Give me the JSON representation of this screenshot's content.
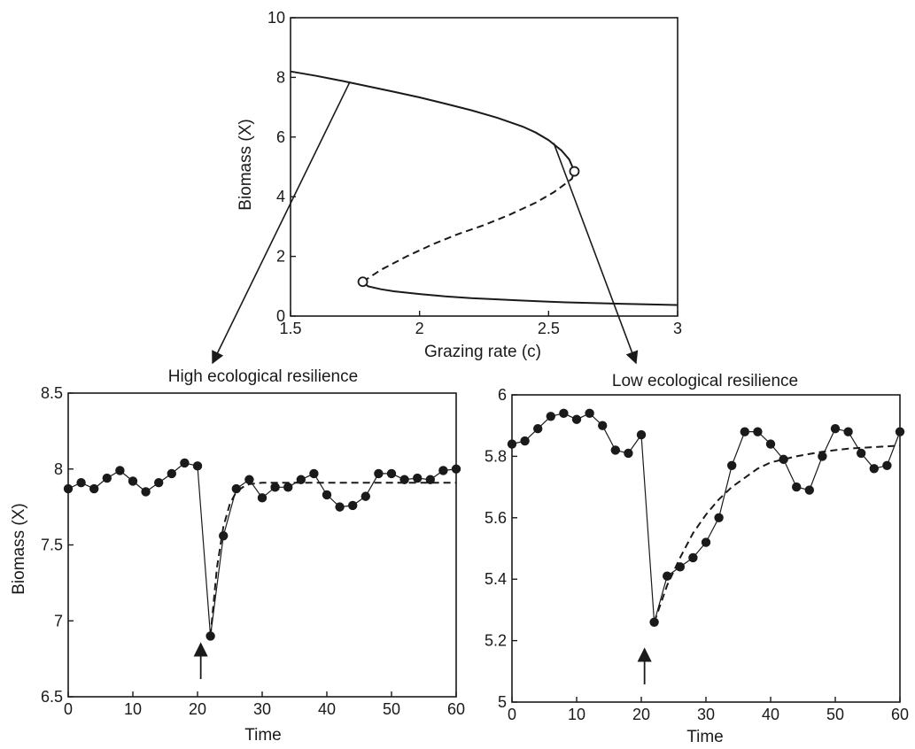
{
  "chart_data": [
    {
      "id": "bifurcation",
      "type": "line",
      "title": "",
      "xlabel": "Grazing rate (c)",
      "ylabel": "Biomass (X)",
      "xlim": [
        1.5,
        3
      ],
      "ylim": [
        0,
        10
      ],
      "xticks": [
        1.5,
        2,
        2.5,
        3
      ],
      "xtick_labels": [
        "1.5",
        "2",
        "2.5",
        "3"
      ],
      "yticks": [
        0,
        2,
        4,
        6,
        8,
        10
      ],
      "ytick_labels": [
        "0",
        "2",
        "4",
        "6",
        "8",
        "10"
      ],
      "grid": false,
      "series": [
        {
          "role": "stable-upper",
          "style": "solid",
          "x": [
            1.5,
            1.6,
            1.7,
            1.8,
            1.9,
            2.0,
            2.1,
            2.2,
            2.3,
            2.4,
            2.45,
            2.5,
            2.55,
            2.58,
            2.6
          ],
          "y": [
            8.2,
            8.05,
            7.88,
            7.7,
            7.52,
            7.33,
            7.12,
            6.9,
            6.65,
            6.35,
            6.15,
            5.9,
            5.55,
            5.25,
            4.85
          ]
        },
        {
          "role": "unstable",
          "style": "dashed",
          "x": [
            1.78,
            1.85,
            1.95,
            2.05,
            2.15,
            2.25,
            2.35,
            2.45,
            2.52,
            2.56,
            2.59,
            2.6
          ],
          "y": [
            1.15,
            1.55,
            2.0,
            2.4,
            2.75,
            3.05,
            3.4,
            3.8,
            4.15,
            4.4,
            4.6,
            4.85
          ]
        },
        {
          "role": "stable-lower",
          "style": "solid",
          "x": [
            1.78,
            1.8,
            1.85,
            1.9,
            2.0,
            2.1,
            2.2,
            2.3,
            2.4,
            2.5,
            2.6,
            2.7,
            2.8,
            2.9,
            3.0
          ],
          "y": [
            1.15,
            1.0,
            0.9,
            0.83,
            0.74,
            0.66,
            0.6,
            0.56,
            0.52,
            0.48,
            0.45,
            0.43,
            0.41,
            0.39,
            0.37
          ]
        }
      ],
      "fold_points": [
        {
          "x": 2.6,
          "y": 4.85
        },
        {
          "x": 1.78,
          "y": 1.15
        }
      ],
      "callouts": [
        {
          "from": {
            "x": 1.73,
            "y": 7.85
          },
          "to_panel": "high-resilience"
        },
        {
          "from": {
            "x": 2.52,
            "y": 5.8
          },
          "to_panel": "low-resilience"
        }
      ]
    },
    {
      "id": "high-resilience",
      "type": "line",
      "title": "High ecological resilience",
      "xlabel": "Time",
      "ylabel": "Biomass (X)",
      "xlim": [
        0,
        60
      ],
      "ylim": [
        6.5,
        8.5
      ],
      "xticks": [
        0,
        10,
        20,
        30,
        40,
        50,
        60
      ],
      "xtick_labels": [
        "0",
        "10",
        "20",
        "30",
        "40",
        "50",
        "60"
      ],
      "yticks": [
        6.5,
        7,
        7.5,
        8,
        8.5
      ],
      "ytick_labels": [
        "6.5",
        "7",
        "7.5",
        "8",
        "8.5"
      ],
      "grid": false,
      "perturbation_time": 20.5,
      "series": [
        {
          "role": "observed",
          "style": "line+markers",
          "x": [
            0,
            2,
            4,
            6,
            8,
            10,
            12,
            14,
            16,
            18,
            20,
            22,
            24,
            26,
            28,
            30,
            32,
            34,
            36,
            38,
            40,
            42,
            44,
            46,
            48,
            50,
            52,
            54,
            56,
            58,
            60
          ],
          "y": [
            7.87,
            7.91,
            7.87,
            7.94,
            7.99,
            7.92,
            7.85,
            7.91,
            7.97,
            8.04,
            8.02,
            6.9,
            7.56,
            7.87,
            7.93,
            7.81,
            7.88,
            7.88,
            7.93,
            7.97,
            7.83,
            7.75,
            7.76,
            7.82,
            7.97,
            7.97,
            7.93,
            7.94,
            7.93,
            7.99,
            8.0
          ]
        },
        {
          "role": "recovery-fit",
          "style": "dashed",
          "x": [
            22,
            23,
            24,
            25,
            26,
            27,
            28,
            30,
            35,
            40,
            50,
            60
          ],
          "y": [
            6.9,
            7.35,
            7.62,
            7.77,
            7.85,
            7.88,
            7.9,
            7.91,
            7.91,
            7.91,
            7.91,
            7.91
          ]
        }
      ]
    },
    {
      "id": "low-resilience",
      "type": "line",
      "title": "Low ecological resilience",
      "xlabel": "Time",
      "ylabel": "",
      "xlim": [
        0,
        60
      ],
      "ylim": [
        5,
        6
      ],
      "xticks": [
        0,
        10,
        20,
        30,
        40,
        50,
        60
      ],
      "xtick_labels": [
        "0",
        "10",
        "20",
        "30",
        "40",
        "50",
        "60"
      ],
      "yticks": [
        5,
        5.2,
        5.4,
        5.6,
        5.8,
        6
      ],
      "ytick_labels": [
        "5",
        "5.2",
        "5.4",
        "5.6",
        "5.8",
        "6"
      ],
      "grid": false,
      "perturbation_time": 20.5,
      "series": [
        {
          "role": "observed",
          "style": "line+markers",
          "x": [
            0,
            2,
            4,
            6,
            8,
            10,
            12,
            14,
            16,
            18,
            20,
            22,
            24,
            26,
            28,
            30,
            32,
            34,
            36,
            38,
            40,
            42,
            44,
            46,
            48,
            50,
            52,
            54,
            56,
            58,
            60
          ],
          "y": [
            5.84,
            5.85,
            5.89,
            5.93,
            5.94,
            5.92,
            5.94,
            5.9,
            5.82,
            5.81,
            5.87,
            5.26,
            5.41,
            5.44,
            5.47,
            5.52,
            5.6,
            5.77,
            5.88,
            5.88,
            5.84,
            5.79,
            5.7,
            5.69,
            5.8,
            5.89,
            5.88,
            5.81,
            5.76,
            5.77,
            5.88
          ]
        },
        {
          "role": "recovery-fit",
          "style": "dashed",
          "x": [
            22,
            24,
            26,
            28,
            30,
            32,
            34,
            36,
            38,
            40,
            44,
            48,
            52,
            56,
            60
          ],
          "y": [
            5.26,
            5.38,
            5.47,
            5.55,
            5.61,
            5.66,
            5.7,
            5.73,
            5.76,
            5.78,
            5.8,
            5.815,
            5.825,
            5.83,
            5.835
          ]
        }
      ]
    }
  ]
}
